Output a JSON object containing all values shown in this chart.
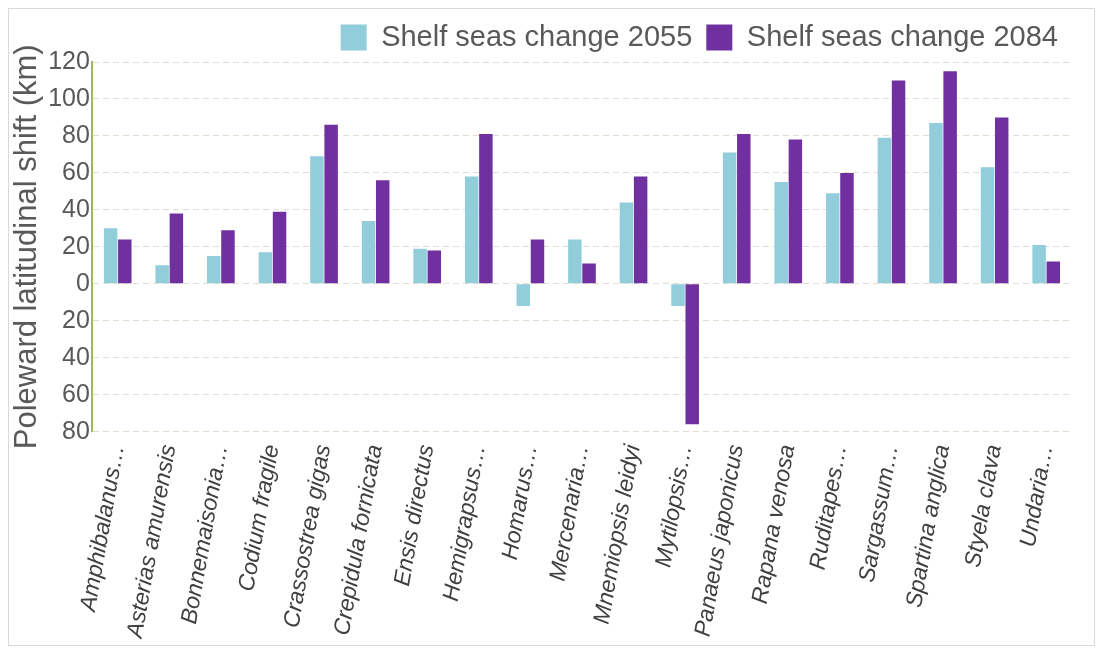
{
  "chart_data": {
    "type": "bar",
    "ylabel": "Poleward latitudinal shift (km)",
    "categories": [
      "Amphibalanus…",
      "Asterias amurensis",
      "Bonnemaisonia…",
      "Codium fragile",
      "Crassostrea gigas",
      "Crepidula fornicata",
      "Ensis directus",
      "Hemigrapsus…",
      "Homarus…",
      "Mercenaria…",
      "Mnemiopsis leidyi",
      "Mytilopsis…",
      "Panaeus japonicus",
      "Rapana venosa",
      "Ruditapes…",
      "Sargassum…",
      "Spartina anglica",
      "Styela clava",
      "Undaria…"
    ],
    "series": [
      {
        "name": "Shelf seas change 2055",
        "color": "#92cddc",
        "values": [
          30,
          10,
          15,
          17,
          69,
          34,
          19,
          58,
          -12,
          24,
          44,
          -12,
          71,
          55,
          49,
          79,
          87,
          63,
          21
        ]
      },
      {
        "name": "Shelf seas change 2084",
        "color": "#7030a0",
        "values": [
          24,
          38,
          29,
          39,
          86,
          56,
          18,
          81,
          24,
          11,
          58,
          -76,
          81,
          78,
          60,
          110,
          115,
          90,
          12
        ]
      }
    ],
    "ylim": [
      -80,
      120
    ],
    "yticks": [
      {
        "value": -80,
        "label": "80"
      },
      {
        "value": -60,
        "label": "60"
      },
      {
        "value": -40,
        "label": "40"
      },
      {
        "value": -20,
        "label": "20"
      },
      0,
      20,
      40,
      60,
      80,
      100,
      120
    ],
    "grid": "y",
    "legend": "top right"
  }
}
